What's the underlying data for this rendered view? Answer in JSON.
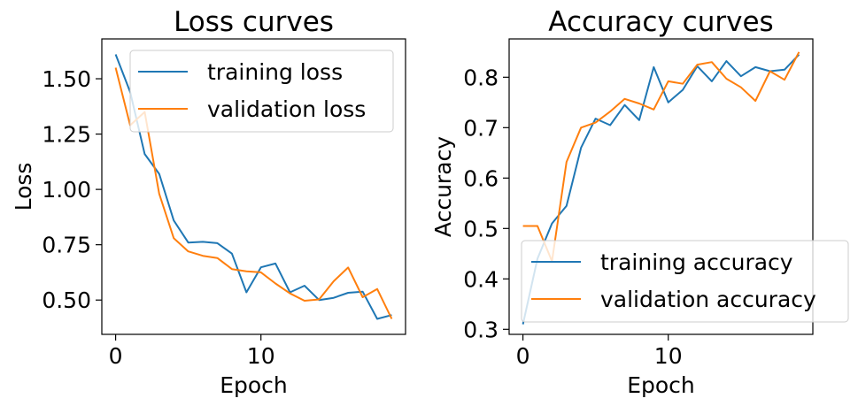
{
  "chart_data": [
    {
      "type": "line",
      "title": "Loss curves",
      "xlabel": "Epoch",
      "ylabel": "Loss",
      "xlim": [
        -0.95,
        19.95
      ],
      "ylim": [
        0.345,
        1.68
      ],
      "xticks": [
        0,
        10
      ],
      "yticks": [
        0.5,
        0.75,
        1.0,
        1.25,
        1.5
      ],
      "ytick_labels": [
        "0.50",
        "0.75",
        "1.00",
        "1.25",
        "1.50"
      ],
      "legend_position": "upper-right",
      "x": [
        0,
        1,
        2,
        3,
        4,
        5,
        6,
        7,
        8,
        9,
        10,
        11,
        12,
        13,
        14,
        15,
        16,
        17,
        18,
        19
      ],
      "series": [
        {
          "name": "training loss",
          "color": "#1f77b4",
          "values": [
            1.61,
            1.44,
            1.16,
            1.07,
            0.86,
            0.76,
            0.763,
            0.757,
            0.71,
            0.535,
            0.648,
            0.665,
            0.535,
            0.565,
            0.5,
            0.51,
            0.533,
            0.538,
            0.415,
            0.432
          ]
        },
        {
          "name": "validation loss",
          "color": "#ff7f0e",
          "values": [
            1.55,
            1.29,
            1.35,
            0.98,
            0.78,
            0.72,
            0.7,
            0.69,
            0.64,
            0.63,
            0.625,
            0.575,
            0.53,
            0.497,
            0.503,
            0.585,
            0.647,
            0.513,
            0.55,
            0.415
          ]
        }
      ]
    },
    {
      "type": "line",
      "title": "Accuracy curves",
      "xlabel": "Epoch",
      "ylabel": "Accuracy",
      "xlim": [
        -0.95,
        19.95
      ],
      "ylim": [
        0.29,
        0.876
      ],
      "xticks": [
        0,
        10
      ],
      "yticks": [
        0.3,
        0.4,
        0.5,
        0.6,
        0.7,
        0.8
      ],
      "ytick_labels": [
        "0.3",
        "0.4",
        "0.5",
        "0.6",
        "0.7",
        "0.8"
      ],
      "legend_position": "lower-right",
      "x": [
        0,
        1,
        2,
        3,
        4,
        5,
        6,
        7,
        8,
        9,
        10,
        11,
        12,
        13,
        14,
        15,
        16,
        17,
        18,
        19
      ],
      "series": [
        {
          "name": "training accuracy",
          "color": "#1f77b4",
          "values": [
            0.31,
            0.44,
            0.51,
            0.545,
            0.66,
            0.718,
            0.705,
            0.745,
            0.715,
            0.82,
            0.75,
            0.775,
            0.822,
            0.792,
            0.832,
            0.802,
            0.82,
            0.812,
            0.815,
            0.845
          ]
        },
        {
          "name": "validation accuracy",
          "color": "#ff7f0e",
          "values": [
            0.505,
            0.505,
            0.435,
            0.632,
            0.7,
            0.71,
            0.732,
            0.757,
            0.748,
            0.736,
            0.792,
            0.787,
            0.825,
            0.83,
            0.797,
            0.78,
            0.753,
            0.812,
            0.795,
            0.85
          ]
        }
      ]
    }
  ]
}
